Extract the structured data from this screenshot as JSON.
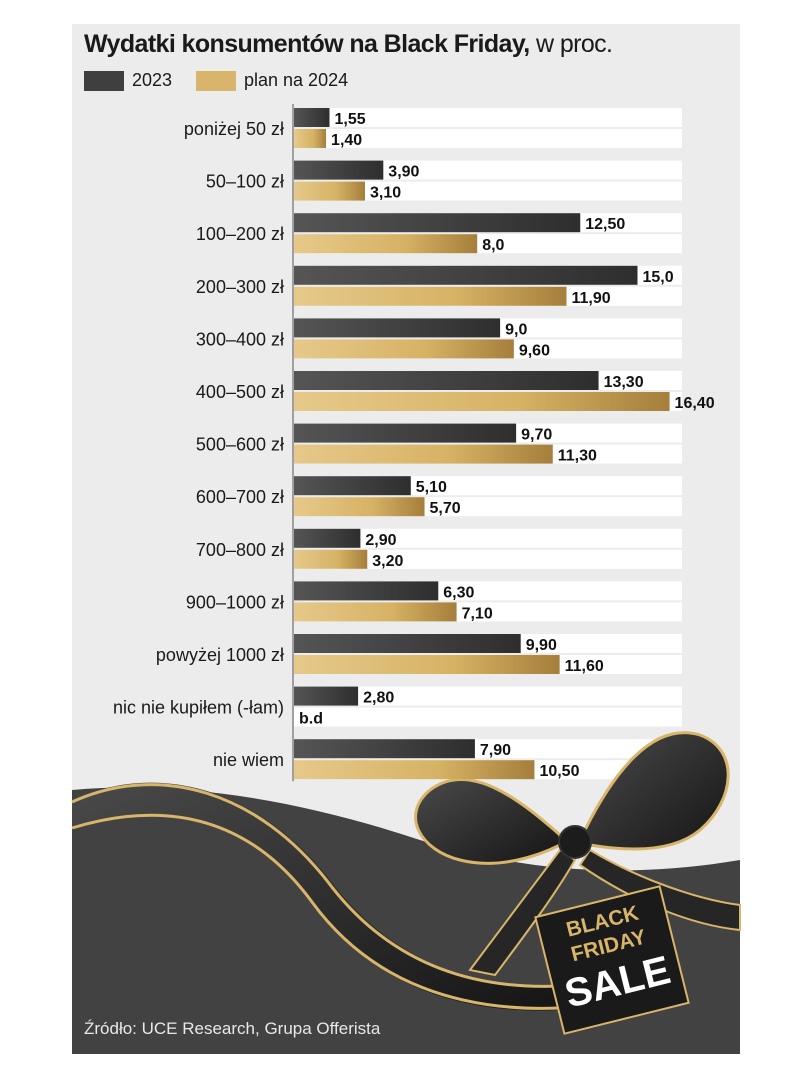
{
  "title": {
    "bold": "Wydatki konsumentów na Black Friday,",
    "normal": "w proc."
  },
  "legend": [
    {
      "label": "2023",
      "color": "#3f3f3f"
    },
    {
      "label": "plan na 2024",
      "color": "#d8b56a"
    }
  ],
  "source": "Źródło: UCE Research, Grupa Offerista",
  "badge": {
    "line1": "BLACK",
    "line2": "FRIDAY",
    "line3": "SALE"
  },
  "chart_data": {
    "type": "bar",
    "orientation": "horizontal",
    "categories": [
      "poniżej 50 zł",
      "50–100 zł",
      "100–200 zł",
      "200–300 zł",
      "300–400 zł",
      "400–500 zł",
      "500–600 zł",
      "600–700 zł",
      "700–800 zł",
      "900–1000 zł",
      "powyżej 1000 zł",
      "nic nie kupiłem (-łam)",
      "nie wiem"
    ],
    "series": [
      {
        "name": "2023",
        "values": [
          1.55,
          3.9,
          12.5,
          15.0,
          9.0,
          13.3,
          9.7,
          5.1,
          2.9,
          6.3,
          9.9,
          2.8,
          7.9
        ],
        "labels": [
          "1,55",
          "3,90",
          "12,50",
          "15,0",
          "9,0",
          "13,30",
          "9,70",
          "5,10",
          "2,90",
          "6,30",
          "9,90",
          "2,80",
          "7,90"
        ]
      },
      {
        "name": "plan na 2024",
        "values": [
          1.4,
          3.1,
          8.0,
          11.9,
          9.6,
          16.4,
          11.3,
          5.7,
          3.2,
          7.1,
          11.6,
          null,
          10.5
        ],
        "labels": [
          "1,40",
          "3,10",
          "8,0",
          "11,90",
          "9,60",
          "16,40",
          "11,30",
          "5,70",
          "3,20",
          "7,10",
          "11,60",
          "b.d",
          "10,50"
        ]
      }
    ],
    "xlim": [
      0,
      16.4
    ]
  }
}
